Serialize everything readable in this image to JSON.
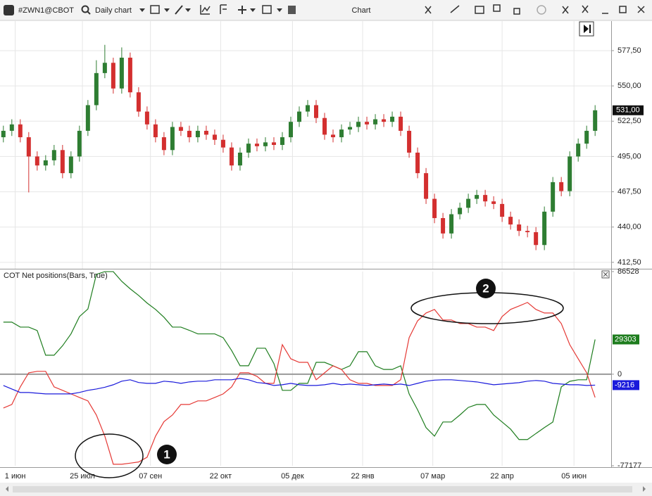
{
  "toolbar": {
    "symbol": "#ZWN1@CBOT",
    "timeframe": "Daily chart",
    "title": "Chart"
  },
  "chart_data": [
    {
      "type": "candlestick",
      "up_color": "#2e7d32",
      "down_color": "#d32f2f",
      "open": [
        510,
        515,
        520,
        510,
        495,
        488,
        492,
        500,
        482,
        495,
        515,
        535,
        560,
        568,
        548,
        572,
        545,
        530,
        520,
        510,
        500,
        518,
        515,
        510,
        515,
        512,
        508,
        502,
        488,
        498,
        505,
        503,
        506,
        504,
        510,
        522,
        530,
        535,
        525,
        512,
        510,
        516,
        518,
        522,
        520,
        524,
        522,
        526,
        515,
        498,
        482,
        462,
        447,
        435,
        450,
        455,
        462,
        465,
        460,
        458,
        448,
        442,
        437,
        436,
        426,
        452,
        475,
        468,
        495,
        505,
        515
      ],
      "high": [
        519,
        524,
        524,
        514,
        499,
        496,
        504,
        504,
        499,
        519,
        539,
        570,
        582,
        572,
        580,
        576,
        549,
        534,
        524,
        514,
        522,
        522,
        519,
        519,
        519,
        516,
        512,
        506,
        502,
        509,
        509,
        510,
        510,
        514,
        526,
        534,
        539,
        539,
        529,
        516,
        520,
        522,
        526,
        526,
        528,
        528,
        530,
        530,
        519,
        502,
        486,
        466,
        451,
        454,
        459,
        466,
        469,
        469,
        464,
        462,
        452,
        446,
        441,
        440,
        456,
        479,
        479,
        499,
        509,
        519,
        535
      ],
      "low": [
        506,
        511,
        506,
        467,
        484,
        484,
        488,
        478,
        478,
        491,
        511,
        531,
        556,
        544,
        544,
        541,
        526,
        516,
        506,
        496,
        496,
        511,
        506,
        506,
        508,
        504,
        498,
        484,
        484,
        494,
        499,
        499,
        500,
        500,
        506,
        518,
        526,
        521,
        508,
        506,
        506,
        512,
        514,
        516,
        516,
        518,
        518,
        511,
        494,
        478,
        458,
        443,
        431,
        431,
        446,
        451,
        458,
        456,
        454,
        444,
        438,
        433,
        432,
        422,
        422,
        448,
        464,
        464,
        491,
        501,
        511
      ],
      "close": [
        515,
        520,
        510,
        495,
        488,
        492,
        500,
        482,
        495,
        515,
        535,
        560,
        568,
        548,
        572,
        545,
        530,
        520,
        510,
        500,
        518,
        515,
        510,
        515,
        512,
        508,
        502,
        488,
        498,
        505,
        503,
        506,
        504,
        510,
        522,
        530,
        535,
        525,
        512,
        510,
        516,
        518,
        522,
        520,
        524,
        522,
        526,
        515,
        498,
        482,
        462,
        447,
        435,
        450,
        455,
        462,
        465,
        460,
        458,
        448,
        442,
        437,
        436,
        426,
        452,
        475,
        468,
        495,
        505,
        515,
        531
      ],
      "close_label": "531,00",
      "xlim": [
        -0.4,
        71.9
      ],
      "ylim": [
        407.5,
        600.5
      ],
      "yticks": [
        {
          "value": 412.5,
          "label": "412,50"
        },
        {
          "value": 440,
          "label": "440,00"
        },
        {
          "value": 467.5,
          "label": "467,50"
        },
        {
          "value": 495,
          "label": "495,00"
        },
        {
          "value": 522.5,
          "label": "522,50"
        },
        {
          "value": 550,
          "label": "550,00"
        },
        {
          "value": 577.5,
          "label": "577,50"
        }
      ],
      "grid": true
    },
    {
      "type": "line",
      "title": "COT Net positions(Bars, True)",
      "series": [
        {
          "color": "#1e7d1e",
          "values": [
            43900,
            43900,
            39700,
            39700,
            36800,
            16000,
            16000,
            24000,
            34000,
            48600,
            55000,
            84200,
            86500,
            86500,
            78300,
            72000,
            66400,
            60000,
            54600,
            48000,
            39700,
            39700,
            37000,
            34000,
            34000,
            34000,
            30800,
            20000,
            7100,
            7100,
            21900,
            21900,
            9000,
            -13600,
            -13600,
            -7700,
            -7700,
            10000,
            10000,
            7100,
            4000,
            7100,
            19000,
            19000,
            7100,
            4000,
            4000,
            7100,
            -16600,
            -30000,
            -45000,
            -52200,
            -40300,
            -40300,
            -34400,
            -28000,
            -25500,
            -25500,
            -34400,
            -40300,
            -46300,
            -55100,
            -55100,
            -50000,
            -45000,
            -40300,
            -10700,
            -6000,
            -4700,
            -4700,
            29303
          ]
        },
        {
          "color": "#e53935",
          "values": [
            -28500,
            -25500,
            -10700,
            1200,
            2400,
            2400,
            -10700,
            -13600,
            -16600,
            -19600,
            -22500,
            -34400,
            -52200,
            -75900,
            -75900,
            -75000,
            -74000,
            -70000,
            -52200,
            -40000,
            -34400,
            -25500,
            -25500,
            -22500,
            -22500,
            -19600,
            -16600,
            -10700,
            1200,
            1200,
            -1800,
            -7700,
            -7700,
            24900,
            13000,
            10000,
            10000,
            -4700,
            1200,
            7100,
            4000,
            -4700,
            -7700,
            -7700,
            -9500,
            -9500,
            -9500,
            -4700,
            30800,
            45000,
            51600,
            54600,
            45700,
            45700,
            42700,
            42700,
            39700,
            39700,
            36800,
            48600,
            54600,
            57500,
            60500,
            54600,
            51600,
            51600,
            42700,
            24900,
            13000,
            1200,
            -19600
          ]
        },
        {
          "color": "#1a1adb",
          "values": [
            -9500,
            -12500,
            -15400,
            -15400,
            -16000,
            -16600,
            -16600,
            -16600,
            -16600,
            -15400,
            -13600,
            -12500,
            -11000,
            -8900,
            -5900,
            -4700,
            -7000,
            -7700,
            -7700,
            -5900,
            -6500,
            -7700,
            -6500,
            -5900,
            -5900,
            -4700,
            -4700,
            -4700,
            -3500,
            -4700,
            -7000,
            -7700,
            -9500,
            -8900,
            -7700,
            -8900,
            -9500,
            -9500,
            -8900,
            -7700,
            -8900,
            -8300,
            -8900,
            -9500,
            -8900,
            -8300,
            -8900,
            -8300,
            -9500,
            -7700,
            -5900,
            -5000,
            -4700,
            -4700,
            -5300,
            -5900,
            -6500,
            -7700,
            -8900,
            -8300,
            -7700,
            -7100,
            -5900,
            -5300,
            -5900,
            -7700,
            -8300,
            -8900,
            -8900,
            -9500,
            -9216
          ]
        }
      ],
      "xlim": [
        -0.4,
        71.9
      ],
      "ylim": [
        -77177,
        86528
      ],
      "yticks": [
        -77177,
        0,
        86528
      ],
      "xticks": [
        {
          "value": 1.4,
          "label": "1 июн"
        },
        {
          "value": 9.35,
          "label": "25 июл"
        },
        {
          "value": 17.4,
          "label": "07 сен"
        },
        {
          "value": 25.7,
          "label": "22 окт"
        },
        {
          "value": 34.2,
          "label": "05 дек"
        },
        {
          "value": 42.5,
          "label": "22 янв"
        },
        {
          "value": 50.8,
          "label": "07 мар"
        },
        {
          "value": 59,
          "label": "22 апр"
        },
        {
          "value": 67.5,
          "label": "05 июн"
        }
      ],
      "annotations": [
        "1",
        "2"
      ]
    }
  ]
}
